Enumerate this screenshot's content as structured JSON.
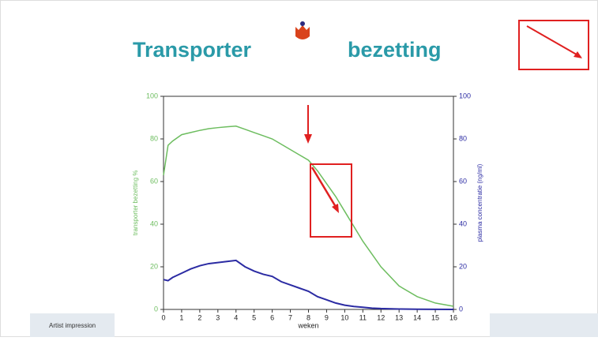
{
  "slide": {
    "title_left": "Transporter",
    "title_right": "bezetting",
    "footer": "Artist impression"
  },
  "chart_data": {
    "type": "line",
    "xlabel": "weken",
    "ylabel": "transporter bezetting %",
    "y2label": "plasma concentratie (ng/ml)",
    "x": [
      0,
      0.25,
      0.5,
      1,
      1.5,
      2,
      2.5,
      3,
      3.5,
      4,
      4.5,
      5,
      5.5,
      6,
      6.5,
      7,
      7.5,
      8,
      8.5,
      9,
      9.5,
      10,
      10.5,
      11,
      11.5,
      12,
      13,
      14,
      15,
      16
    ],
    "series": [
      {
        "name": "transporter bezetting %",
        "color": "#6dbd5f",
        "values": [
          63,
          77,
          79,
          82,
          83,
          84,
          84.8,
          85.3,
          85.7,
          86,
          84.5,
          83,
          81.5,
          80,
          77.5,
          75,
          72.5,
          70,
          65,
          59,
          53,
          46,
          39,
          32,
          26,
          20,
          11,
          6,
          3,
          1.5
        ]
      },
      {
        "name": "plasma concentratie (ng/ml)",
        "color": "#2b2ba3",
        "axis": "y2",
        "values": [
          14,
          13.5,
          15,
          17,
          19,
          20.5,
          21.5,
          22,
          22.5,
          23,
          20,
          18,
          16.5,
          15.5,
          13,
          11.5,
          10,
          8.5,
          6,
          4.5,
          3,
          2,
          1.4,
          1,
          0.6,
          0.4,
          0.2,
          0.1,
          0.05,
          0
        ]
      }
    ],
    "xlim": [
      0,
      16
    ],
    "xticks": [
      0,
      1,
      2,
      3,
      4,
      5,
      6,
      7,
      8,
      9,
      10,
      11,
      12,
      13,
      14,
      15,
      16
    ],
    "ylim": [
      0,
      100
    ],
    "yticks": [
      0,
      20,
      40,
      60,
      80,
      100
    ],
    "y2lim": [
      0,
      100
    ],
    "y2ticks": [
      0,
      20,
      40,
      60,
      80,
      100
    ]
  }
}
